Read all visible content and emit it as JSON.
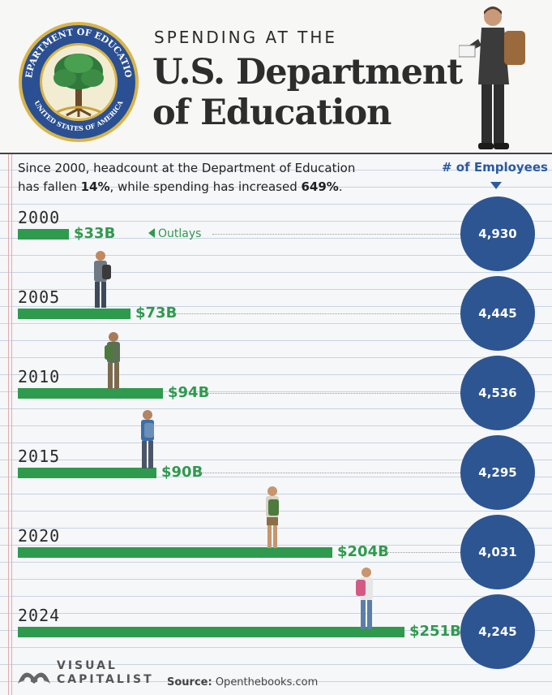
{
  "header": {
    "kicker": "SPENDING AT THE",
    "title_line1": "U.S. Department",
    "title_line2": "of Education"
  },
  "seal": {
    "top_text": "DEPARTMENT OF EDUCATION",
    "bottom_text": "UNITED STATES OF AMERICA"
  },
  "intro": {
    "line1": "Since 2000, headcount at the Department of Education",
    "line2_a": "has fallen ",
    "line2_b": "14%",
    "line2_c": ", while spending has increased ",
    "line2_d": "649%",
    "line2_e": "."
  },
  "employees_header": "# of Employees",
  "outlays_label": "Outlays",
  "chart_data": {
    "type": "bar",
    "orientation": "horizontal",
    "categories": [
      "2000",
      "2005",
      "2010",
      "2015",
      "2020",
      "2024"
    ],
    "series": [
      {
        "name": "Outlays",
        "values": [
          33,
          73,
          94,
          90,
          204,
          251
        ],
        "labels": [
          "$33B",
          "$73B",
          "$94B",
          "$90B",
          "$204B",
          "$251B"
        ]
      },
      {
        "name": "# of Employees",
        "values": [
          4930,
          4445,
          4536,
          4295,
          4031,
          4245
        ],
        "labels": [
          "4,930",
          "4,445",
          "4,536",
          "4,295",
          "4,031",
          "4,245"
        ]
      }
    ],
    "colors": {
      "bar": "#2e9a4e",
      "circle": "#2d5591"
    }
  },
  "footer": {
    "brand_line1": "VISUAL",
    "brand_line2": "CAPITALIST",
    "source_label": "Source:",
    "source_value": "Openthebooks.com"
  },
  "colors": {
    "accent_green": "#2e9a4e",
    "accent_blue": "#2d5591",
    "heading_blue": "#2b5aa0"
  }
}
